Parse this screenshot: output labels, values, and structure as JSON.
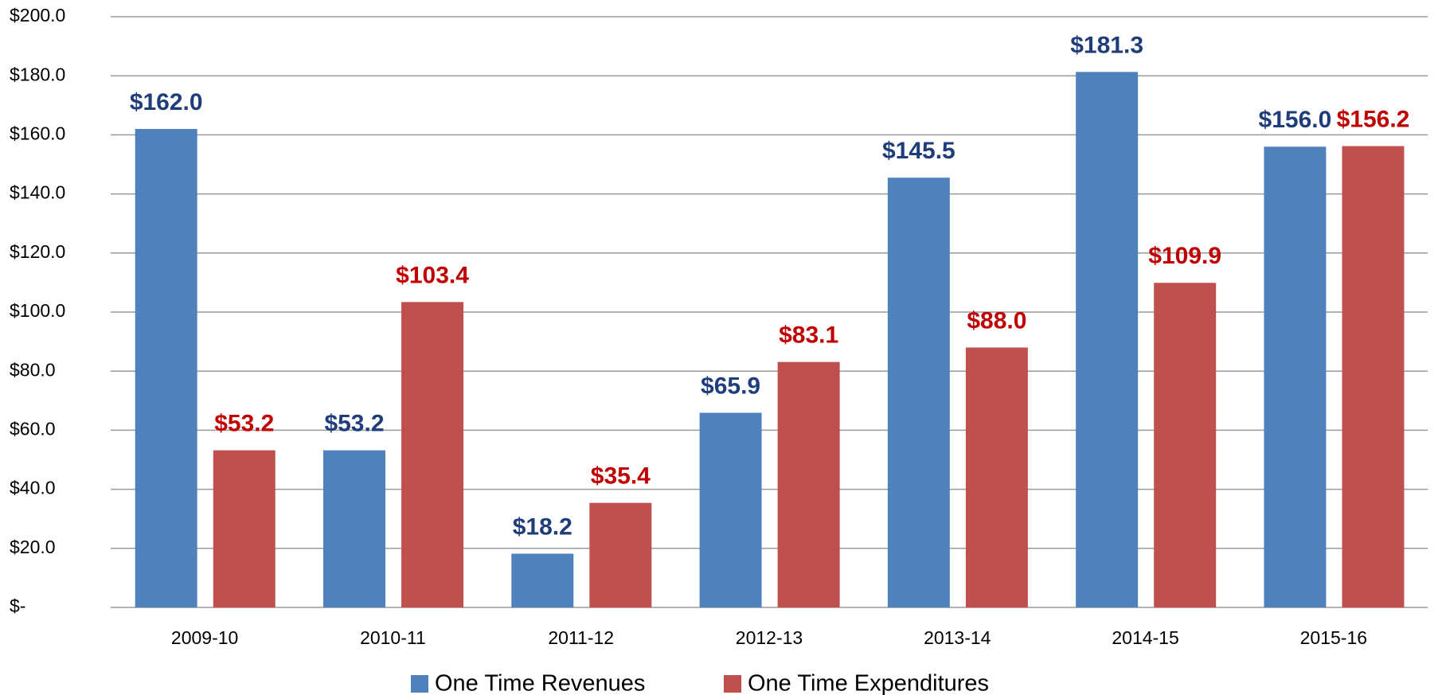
{
  "chart_data": {
    "type": "bar",
    "categories": [
      "2009-10",
      "2010-11",
      "2011-12",
      "2012-13",
      "2013-14",
      "2014-15",
      "2015-16"
    ],
    "series": [
      {
        "name": "One Time Revenues",
        "color": "#4f81bd",
        "label_color": "#1f3d7a",
        "values": [
          162.0,
          53.2,
          18.2,
          65.9,
          145.5,
          181.3,
          156.0
        ],
        "value_labels": [
          "$162.0",
          "$53.2",
          "$18.2",
          "$65.9",
          "$145.5",
          "$181.3",
          "$156.0"
        ]
      },
      {
        "name": "One Time Expenditures",
        "color": "#c0504d",
        "label_color": "#c00000",
        "values": [
          53.2,
          103.4,
          35.4,
          83.1,
          88.0,
          109.9,
          156.2
        ],
        "value_labels": [
          "$53.2",
          "$103.4",
          "$35.4",
          "$83.1",
          "$88.0",
          "$109.9",
          "$156.2"
        ]
      }
    ],
    "ylim": [
      0,
      200
    ],
    "yticks": [
      {
        "value": 0,
        "label": "$-"
      },
      {
        "value": 20,
        "label": "$20.0"
      },
      {
        "value": 40,
        "label": "$40.0"
      },
      {
        "value": 60,
        "label": "$60.0"
      },
      {
        "value": 80,
        "label": "$80.0"
      },
      {
        "value": 100,
        "label": "$100.0"
      },
      {
        "value": 120,
        "label": "$120.0"
      },
      {
        "value": 140,
        "label": "$140.0"
      },
      {
        "value": 160,
        "label": "$160.0"
      },
      {
        "value": 180,
        "label": "$180.0"
      },
      {
        "value": 200,
        "label": "$200.0"
      }
    ],
    "grid": true,
    "legend": "bottom"
  }
}
